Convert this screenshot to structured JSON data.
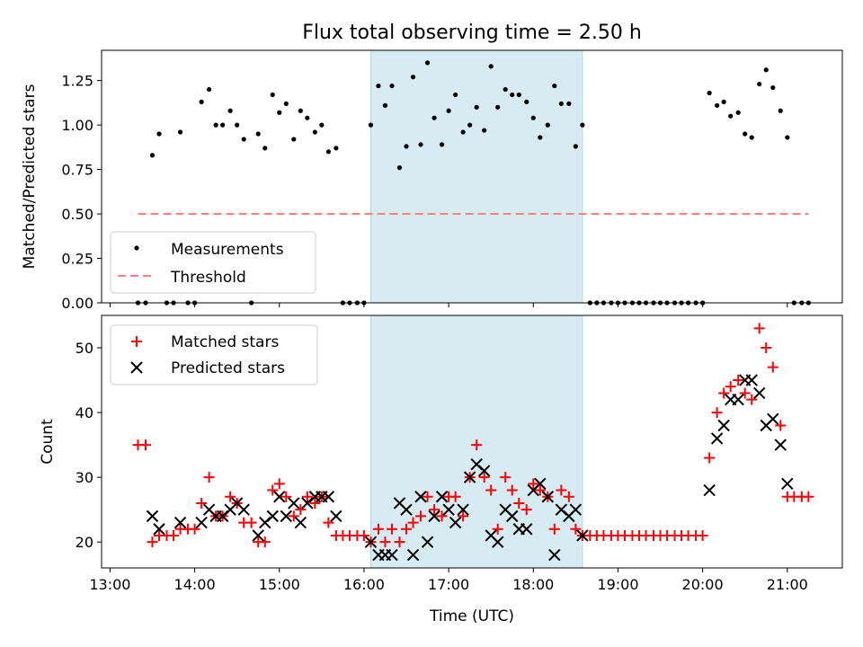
{
  "figure_title": "Flux total observing time = 2.50 h",
  "colors": {
    "measurement": "#000000",
    "threshold": "#ff7f7f",
    "matched": "#ff0000",
    "predicted": "#000000",
    "span": "#add8e6"
  },
  "chart_data": [
    {
      "type": "scatter",
      "title": "Flux total observing time = 2.50 h",
      "ylabel": "Matched/Predicted stars",
      "xlabel": "",
      "x_unit": "hours UTC",
      "xlim": [
        12.9,
        21.65
      ],
      "ylim": [
        0,
        1.42
      ],
      "yticks": [
        0.0,
        0.25,
        0.5,
        0.75,
        1.0,
        1.25
      ],
      "ytick_labels": [
        "0.00",
        "0.25",
        "0.50",
        "0.75",
        "1.00",
        "1.25"
      ],
      "highlight_span": [
        16.08,
        18.58
      ],
      "legend": {
        "position": "lower-left",
        "entries": [
          "Measurements",
          "Threshold"
        ]
      },
      "threshold": {
        "name": "Threshold",
        "y": 0.5,
        "x_range": [
          13.33,
          21.25
        ]
      },
      "series": [
        {
          "name": "Measurements",
          "points": [
            [
              13.33,
              0
            ],
            [
              13.42,
              0
            ],
            [
              13.5,
              0.83
            ],
            [
              13.58,
              0.95
            ],
            [
              13.67,
              0
            ],
            [
              13.75,
              0
            ],
            [
              13.83,
              0.96
            ],
            [
              13.92,
              0
            ],
            [
              14.0,
              0
            ],
            [
              14.08,
              1.13
            ],
            [
              14.17,
              1.2
            ],
            [
              14.25,
              1.0
            ],
            [
              14.33,
              1.0
            ],
            [
              14.42,
              1.08
            ],
            [
              14.5,
              1.0
            ],
            [
              14.58,
              0.92
            ],
            [
              14.67,
              0
            ],
            [
              14.75,
              0.95
            ],
            [
              14.83,
              0.87
            ],
            [
              14.92,
              1.17
            ],
            [
              15.0,
              1.07
            ],
            [
              15.08,
              1.12
            ],
            [
              15.17,
              0.92
            ],
            [
              15.25,
              1.08
            ],
            [
              15.33,
              1.04
            ],
            [
              15.42,
              0.96
            ],
            [
              15.5,
              1.0
            ],
            [
              15.58,
              0.85
            ],
            [
              15.67,
              0.87
            ],
            [
              15.75,
              0
            ],
            [
              15.83,
              0
            ],
            [
              15.92,
              0
            ],
            [
              16.0,
              0
            ],
            [
              16.08,
              1.0
            ],
            [
              16.17,
              1.22
            ],
            [
              16.25,
              1.11
            ],
            [
              16.33,
              1.22
            ],
            [
              16.42,
              0.76
            ],
            [
              16.5,
              0.88
            ],
            [
              16.58,
              1.27
            ],
            [
              16.67,
              0.89
            ],
            [
              16.75,
              1.35
            ],
            [
              16.83,
              1.04
            ],
            [
              16.92,
              0.89
            ],
            [
              17.0,
              1.08
            ],
            [
              17.08,
              1.17
            ],
            [
              17.17,
              0.96
            ],
            [
              17.25,
              1.0
            ],
            [
              17.33,
              1.1
            ],
            [
              17.42,
              0.97
            ],
            [
              17.5,
              1.33
            ],
            [
              17.58,
              1.1
            ],
            [
              17.67,
              1.2
            ],
            [
              17.75,
              1.17
            ],
            [
              17.83,
              1.17
            ],
            [
              17.92,
              1.13
            ],
            [
              18.0,
              1.04
            ],
            [
              18.08,
              0.93
            ],
            [
              18.17,
              1.0
            ],
            [
              18.25,
              1.22
            ],
            [
              18.33,
              1.12
            ],
            [
              18.42,
              1.12
            ],
            [
              18.5,
              0.88
            ],
            [
              18.58,
              1.0
            ],
            [
              18.67,
              0
            ],
            [
              18.75,
              0
            ],
            [
              18.83,
              0
            ],
            [
              18.92,
              0
            ],
            [
              19.0,
              0
            ],
            [
              19.08,
              0
            ],
            [
              19.17,
              0
            ],
            [
              19.25,
              0
            ],
            [
              19.33,
              0
            ],
            [
              19.42,
              0
            ],
            [
              19.5,
              0
            ],
            [
              19.58,
              0
            ],
            [
              19.67,
              0
            ],
            [
              19.75,
              0
            ],
            [
              19.83,
              0
            ],
            [
              19.92,
              0
            ],
            [
              20.0,
              0
            ],
            [
              20.08,
              1.18
            ],
            [
              20.17,
              1.11
            ],
            [
              20.25,
              1.13
            ],
            [
              20.33,
              1.05
            ],
            [
              20.42,
              1.07
            ],
            [
              20.5,
              0.95
            ],
            [
              20.58,
              0.93
            ],
            [
              20.67,
              1.23
            ],
            [
              20.75,
              1.31
            ],
            [
              20.83,
              1.21
            ],
            [
              20.92,
              1.08
            ],
            [
              21.0,
              0.93
            ],
            [
              21.08,
              0
            ],
            [
              21.17,
              0
            ],
            [
              21.25,
              0
            ]
          ]
        }
      ]
    },
    {
      "type": "scatter",
      "title": "",
      "ylabel": "Count",
      "xlabel": "Time (UTC)",
      "x_unit": "hours UTC",
      "xlim": [
        12.9,
        21.65
      ],
      "ylim": [
        16,
        55
      ],
      "yticks": [
        20,
        30,
        40,
        50
      ],
      "ytick_labels": [
        "20",
        "30",
        "40",
        "50"
      ],
      "xticks": [
        13,
        14,
        15,
        16,
        17,
        18,
        19,
        20,
        21
      ],
      "xtick_labels": [
        "13:00",
        "14:00",
        "15:00",
        "16:00",
        "17:00",
        "18:00",
        "19:00",
        "20:00",
        "21:00"
      ],
      "highlight_span": [
        16.08,
        18.58
      ],
      "legend": {
        "position": "top-left",
        "entries": [
          "Matched stars",
          "Predicted stars"
        ]
      },
      "series": [
        {
          "name": "Matched stars",
          "marker": "plus",
          "points": [
            [
              13.33,
              35
            ],
            [
              13.42,
              35
            ],
            [
              13.5,
              20
            ],
            [
              13.58,
              21
            ],
            [
              13.67,
              21
            ],
            [
              13.75,
              21
            ],
            [
              13.83,
              22
            ],
            [
              13.92,
              22
            ],
            [
              14.0,
              22
            ],
            [
              14.08,
              26
            ],
            [
              14.17,
              30
            ],
            [
              14.25,
              24
            ],
            [
              14.33,
              24
            ],
            [
              14.42,
              27
            ],
            [
              14.5,
              26
            ],
            [
              14.58,
              23
            ],
            [
              14.67,
              23
            ],
            [
              14.75,
              20
            ],
            [
              14.83,
              20
            ],
            [
              14.92,
              28
            ],
            [
              15.0,
              29
            ],
            [
              15.08,
              27
            ],
            [
              15.17,
              24
            ],
            [
              15.25,
              25
            ],
            [
              15.33,
              27
            ],
            [
              15.42,
              26
            ],
            [
              15.5,
              27
            ],
            [
              15.58,
              23
            ],
            [
              15.67,
              21
            ],
            [
              15.75,
              21
            ],
            [
              15.83,
              21
            ],
            [
              15.92,
              21
            ],
            [
              16.0,
              21
            ],
            [
              16.08,
              20
            ],
            [
              16.17,
              22
            ],
            [
              16.25,
              20
            ],
            [
              16.33,
              22
            ],
            [
              16.42,
              20
            ],
            [
              16.5,
              22
            ],
            [
              16.58,
              23
            ],
            [
              16.67,
              24
            ],
            [
              16.75,
              27
            ],
            [
              16.83,
              25
            ],
            [
              16.92,
              24
            ],
            [
              17.0,
              27
            ],
            [
              17.08,
              27
            ],
            [
              17.17,
              24
            ],
            [
              17.25,
              30
            ],
            [
              17.33,
              35
            ],
            [
              17.42,
              30
            ],
            [
              17.5,
              28
            ],
            [
              17.58,
              22
            ],
            [
              17.67,
              30
            ],
            [
              17.75,
              28
            ],
            [
              17.83,
              26
            ],
            [
              17.92,
              25
            ],
            [
              18.0,
              29
            ],
            [
              18.08,
              28
            ],
            [
              18.17,
              27
            ],
            [
              18.25,
              22
            ],
            [
              18.33,
              28
            ],
            [
              18.42,
              27
            ],
            [
              18.5,
              22
            ],
            [
              18.58,
              21
            ],
            [
              18.67,
              21
            ],
            [
              18.75,
              21
            ],
            [
              18.83,
              21
            ],
            [
              18.92,
              21
            ],
            [
              19.0,
              21
            ],
            [
              19.08,
              21
            ],
            [
              19.17,
              21
            ],
            [
              19.25,
              21
            ],
            [
              19.33,
              21
            ],
            [
              19.42,
              21
            ],
            [
              19.5,
              21
            ],
            [
              19.58,
              21
            ],
            [
              19.67,
              21
            ],
            [
              19.75,
              21
            ],
            [
              19.83,
              21
            ],
            [
              19.92,
              21
            ],
            [
              20.0,
              21
            ],
            [
              20.08,
              33
            ],
            [
              20.17,
              40
            ],
            [
              20.25,
              43
            ],
            [
              20.33,
              44
            ],
            [
              20.42,
              45
            ],
            [
              20.5,
              43
            ],
            [
              20.58,
              42
            ],
            [
              20.67,
              53
            ],
            [
              20.75,
              50
            ],
            [
              20.83,
              47
            ],
            [
              20.92,
              38
            ],
            [
              21.0,
              27
            ],
            [
              21.08,
              27
            ],
            [
              21.17,
              27
            ],
            [
              21.25,
              27
            ]
          ]
        },
        {
          "name": "Predicted stars",
          "marker": "x",
          "points": [
            [
              13.5,
              24
            ],
            [
              13.58,
              22
            ],
            [
              13.83,
              23
            ],
            [
              14.08,
              23
            ],
            [
              14.17,
              25
            ],
            [
              14.25,
              24
            ],
            [
              14.33,
              24
            ],
            [
              14.42,
              25
            ],
            [
              14.5,
              26
            ],
            [
              14.58,
              25
            ],
            [
              14.75,
              21
            ],
            [
              14.83,
              23
            ],
            [
              14.92,
              24
            ],
            [
              15.0,
              27
            ],
            [
              15.08,
              24
            ],
            [
              15.17,
              26
            ],
            [
              15.25,
              23
            ],
            [
              15.33,
              26
            ],
            [
              15.42,
              27
            ],
            [
              15.5,
              27
            ],
            [
              15.58,
              27
            ],
            [
              15.67,
              24
            ],
            [
              16.08,
              20
            ],
            [
              16.17,
              18
            ],
            [
              16.25,
              18
            ],
            [
              16.33,
              18
            ],
            [
              16.42,
              26
            ],
            [
              16.5,
              25
            ],
            [
              16.58,
              18
            ],
            [
              16.67,
              27
            ],
            [
              16.75,
              20
            ],
            [
              16.83,
              24
            ],
            [
              16.92,
              27
            ],
            [
              17.0,
              25
            ],
            [
              17.08,
              23
            ],
            [
              17.17,
              25
            ],
            [
              17.25,
              30
            ],
            [
              17.33,
              32
            ],
            [
              17.42,
              31
            ],
            [
              17.5,
              21
            ],
            [
              17.58,
              20
            ],
            [
              17.67,
              25
            ],
            [
              17.75,
              24
            ],
            [
              17.83,
              22
            ],
            [
              17.92,
              22
            ],
            [
              18.0,
              28
            ],
            [
              18.08,
              29
            ],
            [
              18.17,
              27
            ],
            [
              18.25,
              18
            ],
            [
              18.33,
              25
            ],
            [
              18.42,
              24
            ],
            [
              18.5,
              25
            ],
            [
              18.58,
              21
            ],
            [
              20.08,
              28
            ],
            [
              20.17,
              36
            ],
            [
              20.25,
              38
            ],
            [
              20.33,
              42
            ],
            [
              20.42,
              42
            ],
            [
              20.5,
              45
            ],
            [
              20.58,
              45
            ],
            [
              20.67,
              43
            ],
            [
              20.75,
              38
            ],
            [
              20.83,
              39
            ],
            [
              20.92,
              35
            ],
            [
              21.0,
              29
            ]
          ]
        }
      ]
    }
  ]
}
